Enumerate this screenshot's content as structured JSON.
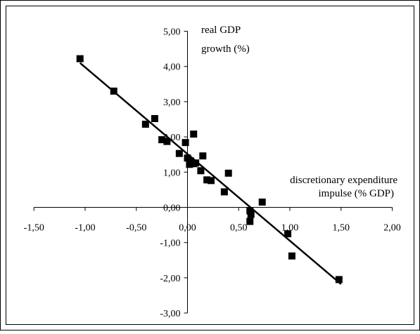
{
  "chart_data": {
    "type": "scatter",
    "title": "",
    "ylabel": [
      "real GDP",
      "growth (%)"
    ],
    "xlabel": [
      "discretionary expenditure",
      "impulse (% GDP)"
    ],
    "xlim": [
      -1.5,
      2.0
    ],
    "ylim": [
      -3.0,
      5.0
    ],
    "x_ticks": [
      -1.5,
      -1.0,
      -0.5,
      0.0,
      0.5,
      1.0,
      1.5,
      2.0
    ],
    "x_tick_labels": [
      "-1,50",
      "-1,00",
      "-0,50",
      "0,00",
      "0,50",
      "1,00",
      "1,50",
      "2,00"
    ],
    "y_ticks": [
      -3.0,
      -2.0,
      -1.0,
      0.0,
      1.0,
      2.0,
      3.0,
      4.0,
      5.0
    ],
    "y_tick_labels": [
      "-3,00",
      "-2,00",
      "-1,00",
      "0,00",
      "1,00",
      "2,00",
      "3,00",
      "4,00",
      "5,00"
    ],
    "grid": false,
    "legend": "none",
    "marker": "square",
    "colors": {
      "marker": "#000000",
      "trendline": "#000000",
      "axes": "#000000",
      "frame": "#000000"
    },
    "points": [
      {
        "x": -1.05,
        "y": 4.22
      },
      {
        "x": -0.72,
        "y": 3.3
      },
      {
        "x": -0.32,
        "y": 2.52
      },
      {
        "x": -0.41,
        "y": 2.36
      },
      {
        "x": -0.25,
        "y": 1.92
      },
      {
        "x": -0.2,
        "y": 1.87
      },
      {
        "x": 0.06,
        "y": 2.08
      },
      {
        "x": -0.02,
        "y": 1.84
      },
      {
        "x": -0.08,
        "y": 1.53
      },
      {
        "x": 0.0,
        "y": 1.4
      },
      {
        "x": 0.03,
        "y": 1.32
      },
      {
        "x": 0.06,
        "y": 1.24
      },
      {
        "x": 0.02,
        "y": 1.22
      },
      {
        "x": 0.08,
        "y": 1.26
      },
      {
        "x": 0.13,
        "y": 1.04
      },
      {
        "x": 0.15,
        "y": 1.46
      },
      {
        "x": 0.19,
        "y": 0.78
      },
      {
        "x": 0.23,
        "y": 0.76
      },
      {
        "x": 0.36,
        "y": 0.44
      },
      {
        "x": 0.4,
        "y": 0.97
      },
      {
        "x": 0.61,
        "y": -0.1
      },
      {
        "x": 0.62,
        "y": -0.2
      },
      {
        "x": 0.61,
        "y": -0.4
      },
      {
        "x": 0.73,
        "y": 0.15
      },
      {
        "x": 0.98,
        "y": -0.75
      },
      {
        "x": 1.02,
        "y": -1.38
      },
      {
        "x": 1.48,
        "y": -2.05
      }
    ],
    "trendline": {
      "x": [
        -1.05,
        1.5
      ],
      "y": [
        4.1,
        -2.18
      ]
    }
  }
}
